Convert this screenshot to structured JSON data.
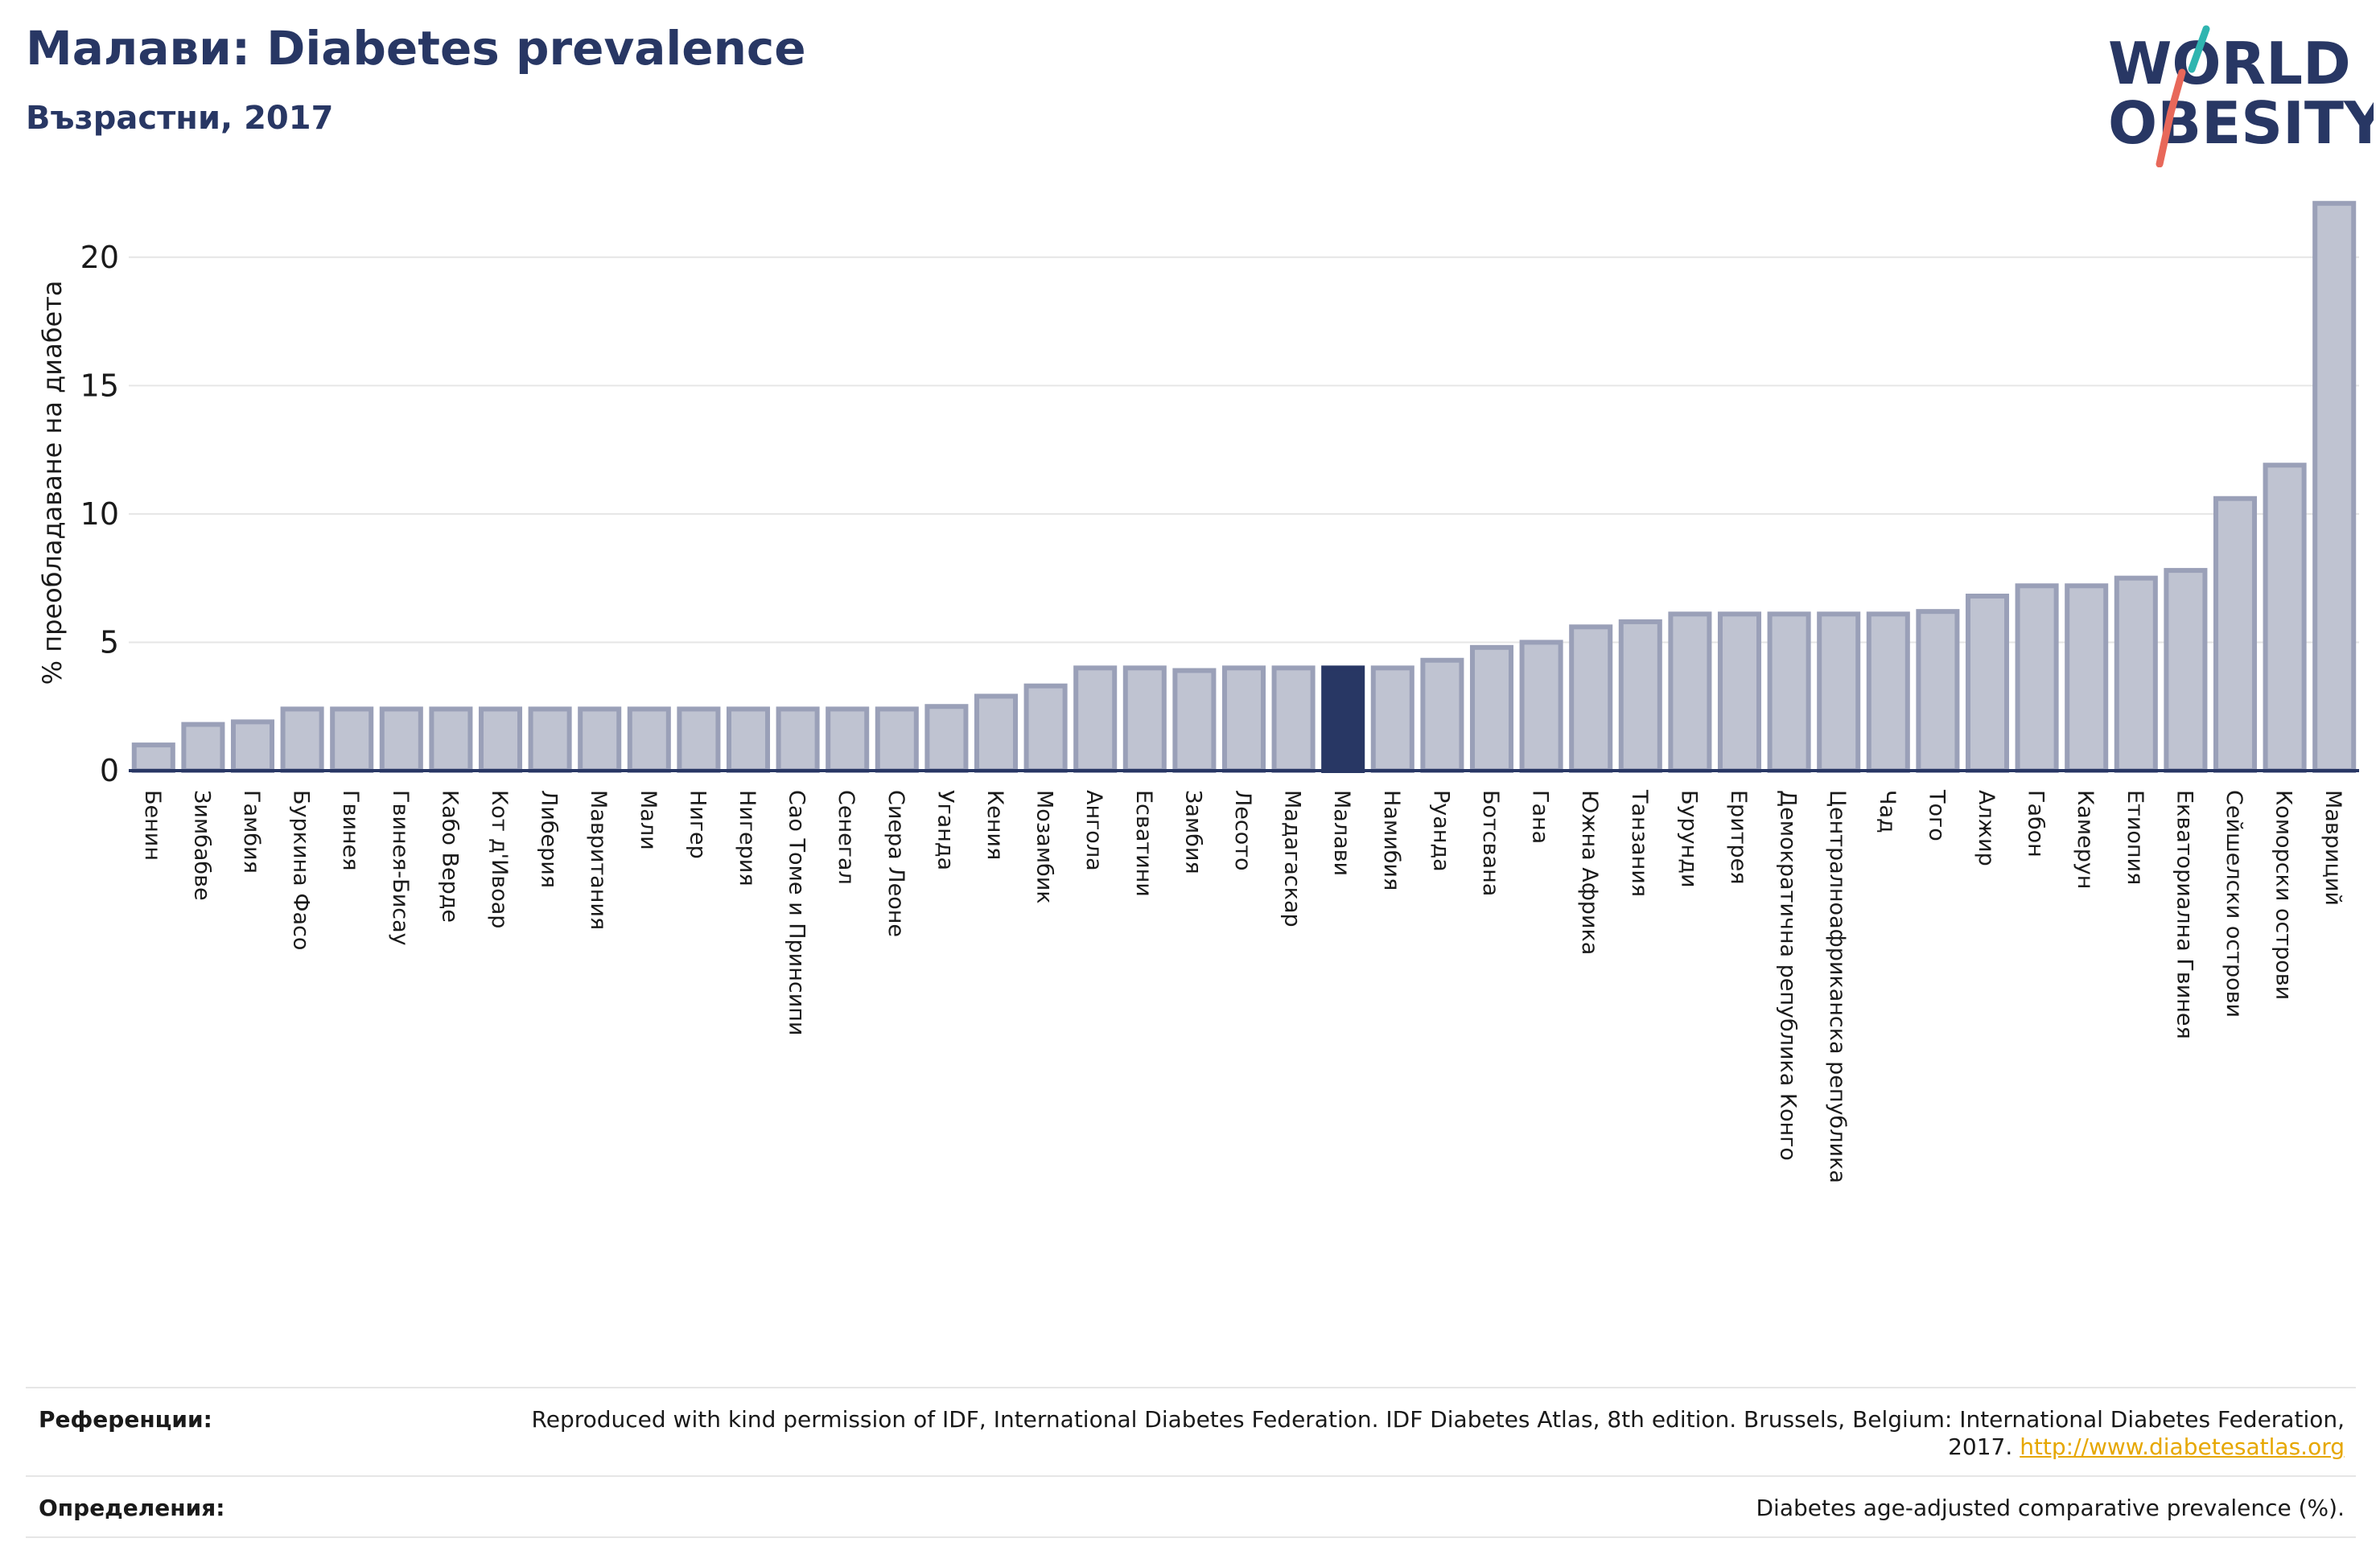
{
  "header": {
    "title": "Малави: Diabetes prevalence",
    "subtitle": "Възрастни, 2017"
  },
  "logo": {
    "line1": "WORLD",
    "line2": "OBESITY",
    "colors": {
      "text": "#283764",
      "slash_teal": "#2fb5b0",
      "slash_coral": "#e8685a"
    }
  },
  "colors": {
    "bar": "#bfc3d1",
    "bar_border": "#9aa0b8",
    "highlight": "#283764",
    "grid": "#e6e6e6",
    "axis": "#283764"
  },
  "chart_data": {
    "type": "bar",
    "ylabel": "% преобладаване на диабета",
    "ylim": [
      0,
      22.5
    ],
    "yticks": [
      0,
      5,
      10,
      15,
      20
    ],
    "grid": true,
    "highlight": "Малави",
    "categories": [
      "Бенин",
      "Зимбабве",
      "Гамбия",
      "Буркина Фасо",
      "Гвинея",
      "Гвинея-Бисау",
      "Кабо Верде",
      "Кот д'Ивоар",
      "Либерия",
      "Мавритания",
      "Мали",
      "Нигер",
      "Нигерия",
      "Сао Томе и Принсипи",
      "Сенегал",
      "Сиера Леоне",
      "Уганда",
      "Кения",
      "Мозамбик",
      "Ангола",
      "Есватини",
      "Замбия",
      "Лесото",
      "Мадагаскар",
      "Малави",
      "Намибия",
      "Руанда",
      "Ботсвана",
      "Гана",
      "Южна Африка",
      "Танзания",
      "Бурунди",
      "Еритрея",
      "Демократична република Конго",
      "Централноафриканска република",
      "Чад",
      "Того",
      "Алжир",
      "Габон",
      "Камерун",
      "Етиопия",
      "Екваториална Гвинея",
      "Сейшелски острови",
      "Коморски острови",
      "Мавриций"
    ],
    "values": [
      1.0,
      1.8,
      1.9,
      2.4,
      2.4,
      2.4,
      2.4,
      2.4,
      2.4,
      2.4,
      2.4,
      2.4,
      2.4,
      2.4,
      2.4,
      2.4,
      2.5,
      2.9,
      3.3,
      4.0,
      4.0,
      3.9,
      4.0,
      4.0,
      4.0,
      4.0,
      4.3,
      4.8,
      5.0,
      5.6,
      5.8,
      6.1,
      6.1,
      6.1,
      6.1,
      6.1,
      6.2,
      6.8,
      7.2,
      7.2,
      7.5,
      7.8,
      10.6,
      11.9,
      22.1
    ]
  },
  "references": {
    "label": "Референции:",
    "text": "Reproduced with kind permission of IDF, International Diabetes Federation. IDF Diabetes Atlas, 8th edition. Brussels, Belgium: International Diabetes Federation, 2017.",
    "link": "http://www.diabetesatlas.org"
  },
  "definitions": {
    "label": "Определения:",
    "text": "Diabetes age-adjusted comparative prevalence (%)."
  }
}
